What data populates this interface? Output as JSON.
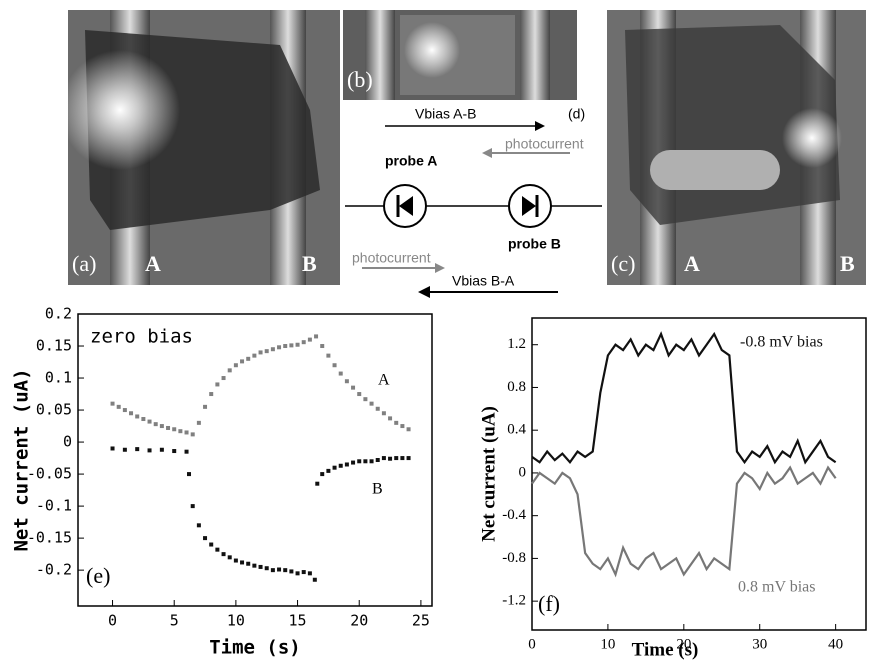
{
  "photos": {
    "a": {
      "label": "(a)",
      "left": "A",
      "right": "B"
    },
    "b": {
      "label": "(b)"
    },
    "c": {
      "label": "(c)",
      "left": "A",
      "right": "B"
    }
  },
  "diagram": {
    "label": "(d)",
    "bias_ab": "Vbias A-B",
    "photocurrent_top": "photocurrent",
    "probe_a": "probe A",
    "probe_b": "probe B",
    "photocurrent_bottom": "photocurrent",
    "bias_ba": "Vbias B-A"
  },
  "chart_data": [
    {
      "type": "scatter",
      "panel_label": "(e)",
      "annotation": "zero bias",
      "x_label": "Time (s)",
      "y_label": "Net current (uA)",
      "xlim": [
        -2.8,
        25.9
      ],
      "ylim": [
        -0.256,
        0.2
      ],
      "xticks": [
        0,
        5,
        10,
        15,
        20,
        25
      ],
      "yticks": [
        0.2,
        0.15,
        0.1,
        0.05,
        0,
        -0.05,
        -0.1,
        -0.15,
        -0.2
      ],
      "series": [
        {
          "name": "A",
          "color": "#808080",
          "x": [
            0,
            0.5,
            1,
            1.5,
            2,
            2.5,
            3,
            3.5,
            4,
            4.5,
            5,
            5.5,
            6,
            6.5,
            7,
            7.5,
            8,
            8.5,
            9,
            9.5,
            10,
            10.5,
            11,
            11.5,
            12,
            12.5,
            13,
            13.5,
            14,
            14.5,
            15,
            15.5,
            16,
            16.5,
            17,
            17.5,
            18,
            18.5,
            19,
            19.5,
            20,
            20.5,
            21,
            21.5,
            22,
            22.5,
            23,
            23.5,
            24
          ],
          "values": [
            0.06,
            0.055,
            0.05,
            0.045,
            0.04,
            0.036,
            0.032,
            0.028,
            0.025,
            0.022,
            0.02,
            0.017,
            0.015,
            0.012,
            0.03,
            0.055,
            0.075,
            0.09,
            0.1,
            0.112,
            0.12,
            0.126,
            0.13,
            0.135,
            0.14,
            0.142,
            0.145,
            0.148,
            0.15,
            0.151,
            0.152,
            0.156,
            0.16,
            0.165,
            0.15,
            0.135,
            0.12,
            0.107,
            0.095,
            0.085,
            0.075,
            0.067,
            0.06,
            0.052,
            0.045,
            0.037,
            0.03,
            0.025,
            0.02
          ]
        },
        {
          "name": "B",
          "color": "#111111",
          "x": [
            0,
            1,
            2,
            3,
            4,
            5,
            6,
            6.2,
            6.5,
            7,
            7.5,
            8,
            8.5,
            9,
            9.5,
            10,
            10.5,
            11,
            11.5,
            12,
            12.5,
            13,
            13.5,
            14,
            14.5,
            15,
            15.5,
            16,
            16.4,
            16.6,
            17,
            17.5,
            18,
            18.5,
            19,
            19.5,
            20,
            20.5,
            21,
            21.5,
            22,
            22.5,
            23,
            23.5,
            24
          ],
          "values": [
            -0.01,
            -0.012,
            -0.011,
            -0.013,
            -0.012,
            -0.014,
            -0.015,
            -0.05,
            -0.1,
            -0.13,
            -0.15,
            -0.16,
            -0.168,
            -0.175,
            -0.18,
            -0.185,
            -0.188,
            -0.19,
            -0.193,
            -0.195,
            -0.197,
            -0.2,
            -0.199,
            -0.2,
            -0.202,
            -0.205,
            -0.203,
            -0.205,
            -0.215,
            -0.065,
            -0.05,
            -0.045,
            -0.04,
            -0.037,
            -0.035,
            -0.032,
            -0.03,
            -0.03,
            -0.03,
            -0.028,
            -0.025,
            -0.026,
            -0.025,
            -0.025,
            -0.025
          ]
        }
      ]
    },
    {
      "type": "line",
      "panel_label": "(f)",
      "x_label": "Time (s)",
      "y_label": "Net current (uA)",
      "xlim": [
        0,
        44
      ],
      "ylim": [
        -1.47,
        1.45
      ],
      "xticks": [
        0,
        10,
        20,
        30,
        40
      ],
      "yticks": [
        1.2,
        0.8,
        0.4,
        0,
        -0.4,
        -0.8,
        -1.2
      ],
      "x": [
        0,
        1,
        2,
        3,
        4,
        5,
        6,
        7,
        8,
        9,
        10,
        11,
        12,
        13,
        14,
        15,
        16,
        17,
        18,
        19,
        20,
        21,
        22,
        23,
        24,
        25,
        26,
        27,
        28,
        29,
        30,
        31,
        32,
        33,
        34,
        35,
        36,
        37,
        38,
        39,
        40
      ],
      "series": [
        {
          "name": "-0.8 mV bias",
          "color": "#111111",
          "values": [
            0.15,
            0.1,
            0.2,
            0.12,
            0.18,
            0.1,
            0.2,
            0.15,
            0.2,
            0.75,
            1.1,
            1.2,
            1.15,
            1.25,
            1.1,
            1.2,
            1.15,
            1.3,
            1.1,
            1.2,
            1.15,
            1.25,
            1.1,
            1.2,
            1.3,
            1.15,
            1.1,
            0.2,
            0.1,
            0.2,
            0.15,
            0.25,
            0.1,
            0.2,
            0.15,
            0.3,
            0.1,
            0.2,
            0.3,
            0.15,
            0.1
          ]
        },
        {
          "name": "0.8 mV bias",
          "color": "#777777",
          "values": [
            -0.1,
            0,
            -0.05,
            -0.1,
            0,
            -0.05,
            -0.2,
            -0.75,
            -0.85,
            -0.9,
            -0.8,
            -0.95,
            -0.7,
            -0.85,
            -0.9,
            -0.8,
            -0.75,
            -0.9,
            -0.85,
            -0.8,
            -0.95,
            -0.85,
            -0.75,
            -0.9,
            -0.8,
            -0.85,
            -0.9,
            -0.1,
            0,
            -0.05,
            -0.15,
            0,
            -0.1,
            -0.05,
            0.05,
            -0.1,
            -0.05,
            0,
            -0.1,
            0.05,
            -0.05
          ]
        }
      ]
    }
  ]
}
